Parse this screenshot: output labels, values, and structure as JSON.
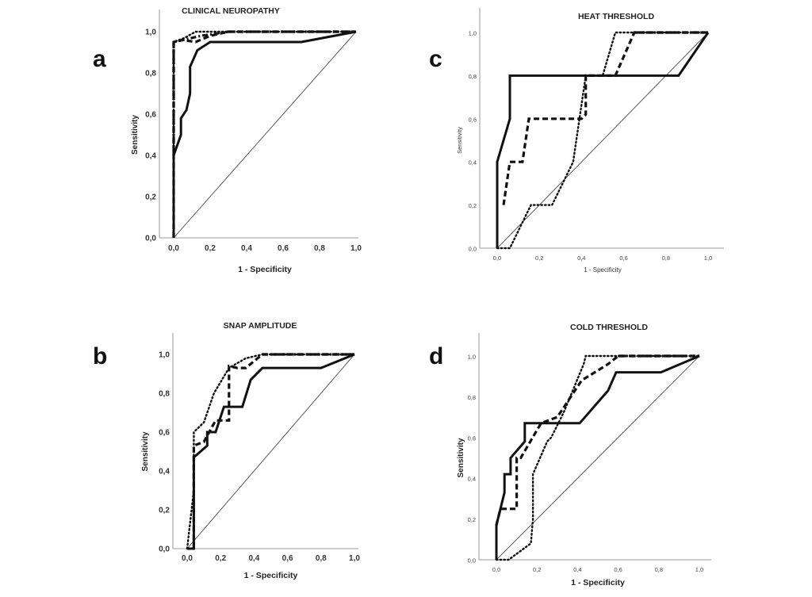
{
  "chart_data": [
    {
      "id": "a",
      "type": "line",
      "panel_letter": "a",
      "title": "CLINICAL NEUROPATHY",
      "xlabel": "1 - Specificity",
      "ylabel": "Sensitivity",
      "xlim": [
        0,
        1
      ],
      "ylim": [
        0,
        1
      ],
      "xticks": [
        "0,0",
        "0,2",
        "0,4",
        "0,6",
        "0,8",
        "1,0"
      ],
      "yticks": [
        "0,0",
        "0,2",
        "0,4",
        "0,6",
        "0,8",
        "1,0"
      ],
      "reference_line": {
        "x": [
          0,
          1
        ],
        "y": [
          0,
          1
        ]
      },
      "grid": false,
      "series": [
        {
          "name": "solid",
          "style": "solid",
          "x": [
            0,
            0,
            0.04,
            0.04,
            0.07,
            0.09,
            0.09,
            0.13,
            0.2,
            0.7,
            1.0
          ],
          "y": [
            0,
            0.4,
            0.5,
            0.58,
            0.62,
            0.7,
            0.83,
            0.91,
            0.95,
            0.95,
            1.0
          ]
        },
        {
          "name": "dash",
          "style": "dash",
          "x": [
            0,
            0,
            0.05,
            0.12,
            0.2,
            0.3,
            1.0
          ],
          "y": [
            0,
            0.95,
            0.96,
            0.95,
            0.98,
            1.0,
            1.0
          ]
        },
        {
          "name": "dot",
          "style": "dot",
          "x": [
            0,
            0,
            0.06,
            0.12,
            0.2,
            1.0
          ],
          "y": [
            0.4,
            0.95,
            0.97,
            1.0,
            1.0,
            1.0
          ]
        },
        {
          "name": "dash-dot",
          "style": "dashdot",
          "x": [
            0,
            0,
            0.15,
            0.3,
            1.0
          ],
          "y": [
            0.4,
            0.95,
            0.98,
            1.0,
            1.0
          ]
        }
      ]
    },
    {
      "id": "b",
      "type": "line",
      "panel_letter": "b",
      "title": "SNAP AMPLITUDE",
      "xlabel": "1 - Specificity",
      "ylabel": "Sensitivity",
      "xlim": [
        0,
        1
      ],
      "ylim": [
        0,
        1
      ],
      "xticks": [
        "0,0",
        "0,2",
        "0,4",
        "0,6",
        "0,8",
        "1,0"
      ],
      "yticks": [
        "0,0",
        "0,2",
        "0,4",
        "0,6",
        "0,8",
        "1,0"
      ],
      "reference_line": {
        "x": [
          0,
          1
        ],
        "y": [
          0,
          1
        ]
      },
      "grid": false,
      "series": [
        {
          "name": "solid",
          "style": "solid",
          "x": [
            0,
            0.04,
            0.04,
            0.04,
            0.12,
            0.12,
            0.17,
            0.22,
            0.33,
            0.38,
            0.45,
            0.8,
            1.0
          ],
          "y": [
            0,
            0,
            0.0,
            0.47,
            0.53,
            0.6,
            0.6,
            0.73,
            0.73,
            0.87,
            0.93,
            0.93,
            1.0
          ]
        },
        {
          "name": "dash",
          "style": "dash",
          "x": [
            0.04,
            0.04,
            0.1,
            0.17,
            0.25,
            0.25,
            0.25,
            0.3,
            0.35,
            0.45,
            1.0
          ],
          "y": [
            0.0,
            0.53,
            0.55,
            0.66,
            0.66,
            0.94,
            0.94,
            0.93,
            0.93,
            1.0,
            1.0
          ]
        },
        {
          "name": "dot",
          "style": "dot",
          "x": [
            0.0,
            0.02,
            0.04,
            0.04,
            0.1,
            0.16,
            0.25,
            0.35,
            0.45,
            1.0
          ],
          "y": [
            0.0,
            0.15,
            0.3,
            0.6,
            0.65,
            0.8,
            0.93,
            0.98,
            1.0,
            1.0
          ]
        },
        {
          "name": "dash-dot",
          "style": "dashdot",
          "x": [
            0.45,
            1.0
          ],
          "y": [
            1.0,
            1.0
          ]
        }
      ]
    },
    {
      "id": "c",
      "type": "line",
      "panel_letter": "c",
      "title": "HEAT THRESHOLD",
      "xlabel": "1 - Specificity",
      "ylabel": "Sensitivity",
      "xlim": [
        0,
        1
      ],
      "ylim": [
        0,
        1
      ],
      "xticks": [
        "0,0",
        "0,2",
        "0,4",
        "0,6",
        "0,8",
        "1,0"
      ],
      "yticks": [
        "0,0",
        "0,2",
        "0,4",
        "0,6",
        "0,8",
        "1,0"
      ],
      "reference_line": {
        "x": [
          0,
          1
        ],
        "y": [
          0,
          1
        ]
      },
      "grid": false,
      "series": [
        {
          "name": "solid",
          "style": "solid",
          "x": [
            0,
            0,
            0.06,
            0.06,
            0.86,
            1.0
          ],
          "y": [
            0,
            0.4,
            0.6,
            0.8,
            0.8,
            1.0
          ]
        },
        {
          "name": "dash",
          "style": "dash",
          "x": [
            0.03,
            0.06,
            0.12,
            0.15,
            0.4,
            0.42,
            0.42,
            0.56,
            0.65,
            1.0
          ],
          "y": [
            0.2,
            0.4,
            0.4,
            0.6,
            0.6,
            0.62,
            0.8,
            0.8,
            1.0,
            1.0
          ]
        },
        {
          "name": "dot",
          "style": "dot",
          "x": [
            0.0,
            0.06,
            0.16,
            0.26,
            0.36,
            0.42,
            0.5,
            0.56,
            1.0
          ],
          "y": [
            0.0,
            0.0,
            0.2,
            0.2,
            0.4,
            0.8,
            0.8,
            1.0,
            1.0
          ]
        },
        {
          "name": "dash-dot",
          "style": "dashdot",
          "x": [
            0.65,
            1.0
          ],
          "y": [
            1.0,
            1.0
          ]
        }
      ]
    },
    {
      "id": "d",
      "type": "line",
      "panel_letter": "d",
      "title": "COLD THRESHOLD",
      "xlabel": "1 - Specificity",
      "ylabel": "Sensitivity",
      "xlim": [
        0,
        1
      ],
      "ylim": [
        0,
        1
      ],
      "xticks": [
        "0,0",
        "0,2",
        "0,4",
        "0,6",
        "0,8",
        "1,0"
      ],
      "yticks": [
        "0,0",
        "0,2",
        "0,4",
        "0,6",
        "0,8",
        "1,0"
      ],
      "reference_line": {
        "x": [
          0,
          1
        ],
        "y": [
          0,
          1
        ]
      },
      "grid": false,
      "series": [
        {
          "name": "solid",
          "style": "solid",
          "x": [
            0,
            0,
            0.04,
            0.04,
            0.07,
            0.07,
            0.14,
            0.14,
            0.41,
            0.55,
            0.59,
            0.81,
            1.0
          ],
          "y": [
            0,
            0.17,
            0.33,
            0.42,
            0.42,
            0.5,
            0.58,
            0.67,
            0.67,
            0.83,
            0.92,
            0.92,
            1.0
          ]
        },
        {
          "name": "dash",
          "style": "dash",
          "x": [
            0.0,
            0.02,
            0.1,
            0.1,
            0.12,
            0.22,
            0.3,
            0.42,
            0.55,
            0.6,
            1.0
          ],
          "y": [
            0.17,
            0.25,
            0.25,
            0.5,
            0.5,
            0.67,
            0.7,
            0.88,
            0.96,
            1.0,
            1.0
          ]
        },
        {
          "name": "dot",
          "style": "dot",
          "x": [
            0.0,
            0.06,
            0.17,
            0.18,
            0.18,
            0.25,
            0.27,
            0.33,
            0.43,
            0.44,
            1.0
          ],
          "y": [
            0.0,
            0.0,
            0.08,
            0.2,
            0.42,
            0.58,
            0.6,
            0.72,
            0.96,
            1.0,
            1.0
          ]
        },
        {
          "name": "dash-dot",
          "style": "dashdot",
          "x": [
            0.6,
            1.0
          ],
          "y": [
            1.0,
            1.0
          ]
        }
      ]
    }
  ]
}
